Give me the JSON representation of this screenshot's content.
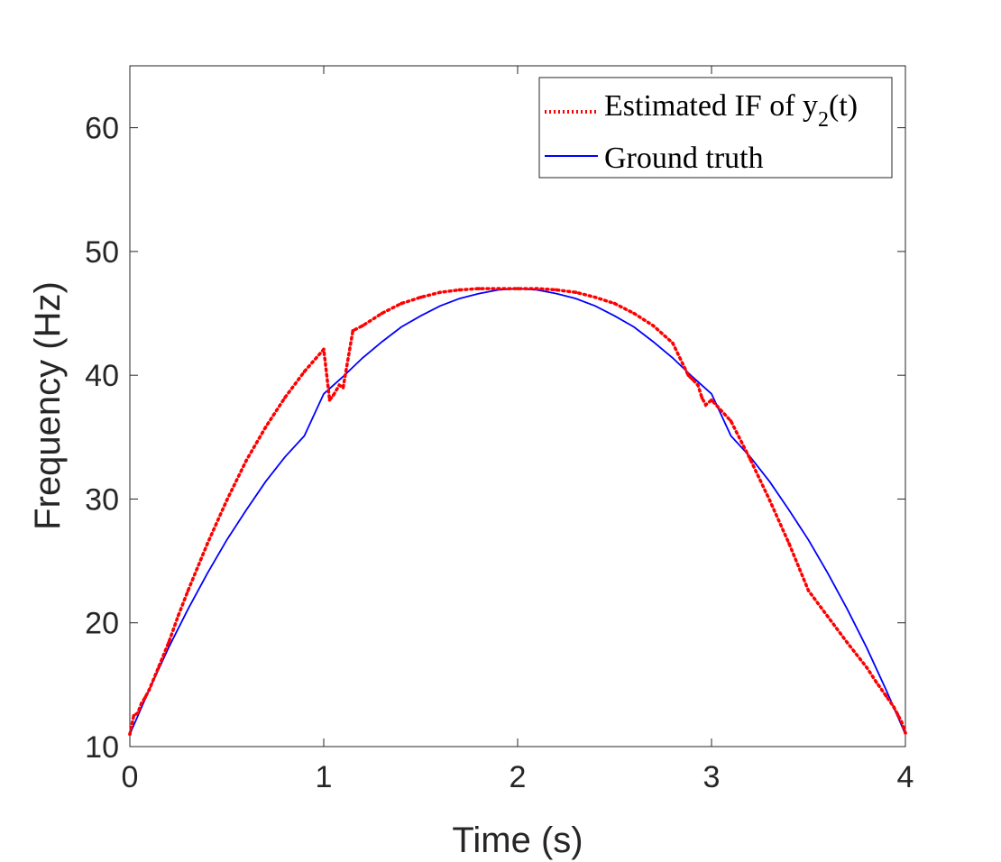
{
  "chart_data": {
    "type": "line",
    "title": "",
    "xlabel": "Time (s)",
    "ylabel": "Frequency (Hz)",
    "xlim": [
      0,
      4
    ],
    "ylim": [
      10,
      65
    ],
    "xticks": [
      0,
      1,
      2,
      3,
      4
    ],
    "yticks": [
      10,
      20,
      30,
      40,
      50,
      60
    ],
    "grid": false,
    "legend_position": "top-right",
    "series": [
      {
        "name": "Estimated IF of y2(t)",
        "legend_main": "Estimated IF of y",
        "legend_sub": "2",
        "legend_tail": "(t)",
        "color": "#ff0000",
        "style": "dotted",
        "x": [
          0.0,
          0.02,
          0.04,
          0.06,
          0.08,
          0.1,
          0.15,
          0.2,
          0.25,
          0.3,
          0.4,
          0.5,
          0.6,
          0.7,
          0.8,
          0.9,
          1.0,
          1.03,
          1.05,
          1.08,
          1.1,
          1.15,
          1.2,
          1.3,
          1.4,
          1.5,
          1.6,
          1.7,
          1.8,
          1.9,
          2.0,
          2.1,
          2.2,
          2.3,
          2.4,
          2.5,
          2.6,
          2.7,
          2.8,
          2.88,
          2.9,
          2.93,
          2.95,
          2.97,
          3.0,
          3.1,
          3.2,
          3.3,
          3.4,
          3.5,
          3.6,
          3.7,
          3.8,
          3.85,
          3.9,
          3.94,
          3.96,
          3.98,
          4.0
        ],
        "values": [
          11.0,
          12.5,
          12.7,
          13.5,
          14.0,
          14.6,
          16.5,
          18.4,
          20.6,
          22.6,
          26.4,
          29.9,
          33.1,
          35.8,
          38.2,
          40.3,
          42.1,
          38.0,
          38.4,
          39.2,
          39.0,
          43.6,
          44.0,
          45.0,
          45.8,
          46.3,
          46.7,
          46.9,
          47.0,
          47.0,
          47.0,
          47.0,
          46.9,
          46.7,
          46.3,
          45.8,
          45.0,
          44.0,
          42.6,
          40.0,
          39.7,
          39.2,
          38.2,
          37.6,
          38.0,
          36.3,
          33.2,
          29.9,
          26.4,
          22.6,
          20.5,
          18.4,
          16.4,
          15.2,
          14.1,
          13.2,
          12.6,
          12.0,
          11.1
        ]
      },
      {
        "name": "Ground truth",
        "color": "#0000ff",
        "style": "solid",
        "x": [
          0.0,
          0.1,
          0.2,
          0.3,
          0.4,
          0.5,
          0.6,
          0.7,
          0.8,
          0.9,
          1.0,
          1.1,
          1.2,
          1.3,
          1.4,
          1.5,
          1.6,
          1.7,
          1.8,
          1.9,
          2.0,
          2.1,
          2.2,
          2.3,
          2.4,
          2.5,
          2.6,
          2.7,
          2.8,
          2.9,
          3.0,
          3.1,
          3.2,
          3.3,
          3.4,
          3.5,
          3.6,
          3.7,
          3.8,
          3.9,
          4.0
        ],
        "values": [
          11.0,
          14.6,
          18.0,
          21.1,
          24.0,
          26.7,
          29.1,
          31.4,
          33.4,
          35.1,
          38.5,
          39.9,
          41.4,
          42.7,
          43.9,
          44.8,
          45.6,
          46.2,
          46.6,
          46.9,
          47.0,
          46.9,
          46.6,
          46.2,
          45.6,
          44.8,
          43.9,
          42.7,
          41.4,
          39.9,
          38.5,
          35.1,
          33.4,
          31.4,
          29.1,
          26.7,
          24.0,
          21.1,
          18.0,
          14.6,
          11.0
        ]
      }
    ]
  }
}
